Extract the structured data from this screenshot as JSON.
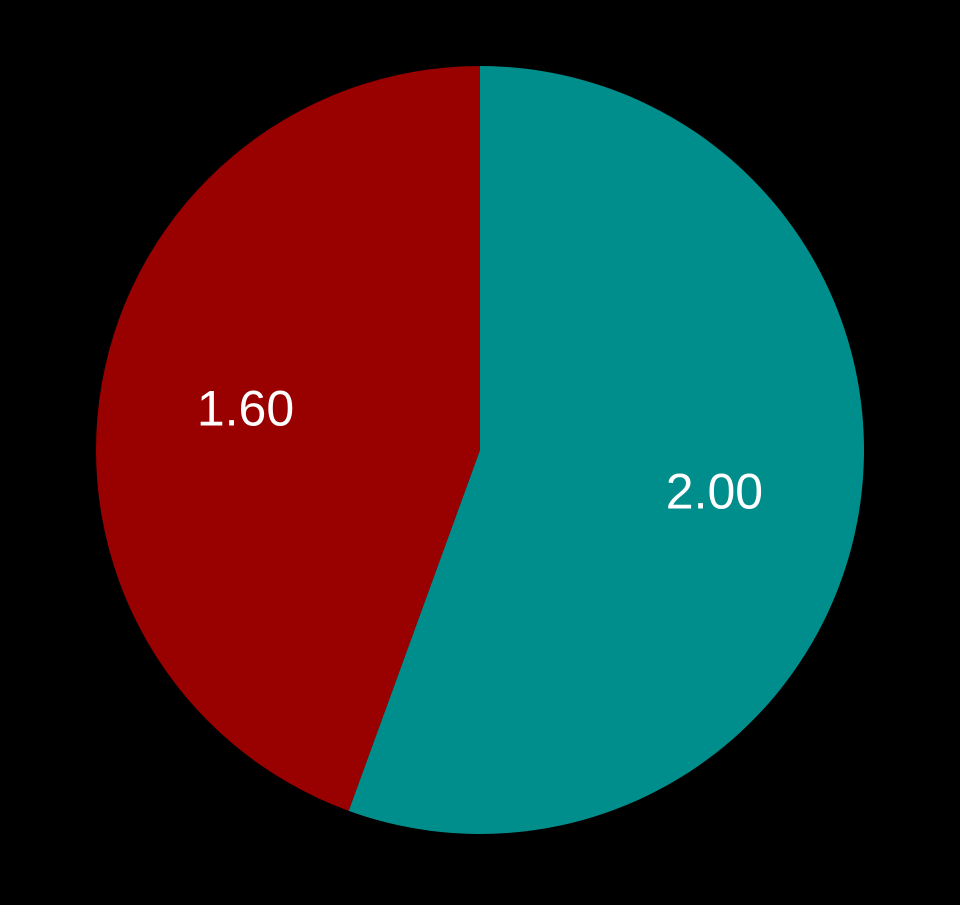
{
  "chart_data": {
    "type": "pie",
    "slices": [
      {
        "value": 2.0,
        "label": "2.00",
        "color": "#008E8C"
      },
      {
        "value": 1.6,
        "label": "1.60",
        "color": "#990000"
      }
    ],
    "start_angle_deg": 0,
    "direction": "clockwise",
    "legend": "none"
  },
  "background_color": "#000000"
}
